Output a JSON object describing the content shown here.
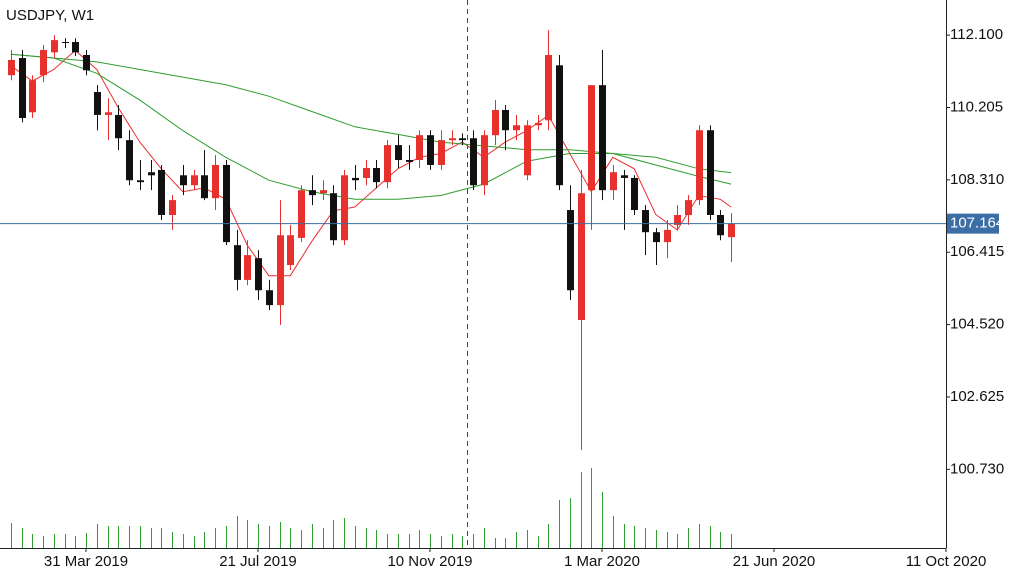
{
  "chart_data": {
    "type": "candlestick",
    "title": "USDJPY, W1",
    "x": [
      "2019-02-10",
      "2019-02-17",
      "2019-02-24",
      "2019-03-03",
      "2019-03-10",
      "2019-03-17",
      "2019-03-24",
      "2019-03-31",
      "2019-04-07",
      "2019-04-14",
      "2019-04-21",
      "2019-04-28",
      "2019-05-05",
      "2019-05-12",
      "2019-05-19",
      "2019-05-26",
      "2019-06-02",
      "2019-06-09",
      "2019-06-16",
      "2019-06-23",
      "2019-06-30",
      "2019-07-07",
      "2019-07-14",
      "2019-07-21",
      "2019-07-28",
      "2019-08-04",
      "2019-08-11",
      "2019-08-18",
      "2019-08-25",
      "2019-09-01",
      "2019-09-08",
      "2019-09-15",
      "2019-09-22",
      "2019-09-29",
      "2019-10-06",
      "2019-10-13",
      "2019-10-20",
      "2019-10-27",
      "2019-11-03",
      "2019-11-10",
      "2019-11-17",
      "2019-11-24",
      "2019-12-01",
      "2019-12-08",
      "2019-12-15",
      "2019-12-22",
      "2019-12-29",
      "2020-01-05",
      "2020-01-12",
      "2020-01-19",
      "2020-01-26",
      "2020-02-02",
      "2020-02-09",
      "2020-02-16",
      "2020-02-23",
      "2020-03-01",
      "2020-03-08",
      "2020-03-15",
      "2020-03-22",
      "2020-03-29",
      "2020-04-05",
      "2020-04-12",
      "2020-04-19",
      "2020-04-26",
      "2020-05-03",
      "2020-05-10",
      "2020-05-17",
      "2020-05-24"
    ],
    "open": [
      111.05,
      111.5,
      110.08,
      111.05,
      111.65,
      111.92,
      111.92,
      111.58,
      110.61,
      110.01,
      110.01,
      109.35,
      108.3,
      108.51,
      108.57,
      107.39,
      108.43,
      108.17,
      108.43,
      107.83,
      108.7,
      106.6,
      105.69,
      106.26,
      105.42,
      105.03,
      106.08,
      106.79,
      108.04,
      107.96,
      107.96,
      106.73,
      108.36,
      108.36,
      108.62,
      108.25,
      109.22,
      108.83,
      108.83,
      109.48,
      108.7,
      109.35,
      109.4,
      109.4,
      108.17,
      109.48,
      110.14,
      109.61,
      108.43,
      109.74,
      109.87,
      111.31,
      107.52,
      104.64,
      108.04,
      110.79,
      108.04,
      108.43,
      108.36,
      107.52,
      106.94,
      106.68,
      107.13,
      107.39,
      107.78,
      109.61,
      107.39,
      106.81
    ],
    "high": [
      111.71,
      111.71,
      111.05,
      111.84,
      112.1,
      112.02,
      112.02,
      111.71,
      110.79,
      110.45,
      110.27,
      109.61,
      108.83,
      108.83,
      108.7,
      107.91,
      108.7,
      108.57,
      109.09,
      108.96,
      108.83,
      107.0,
      106.73,
      106.47,
      105.69,
      107.78,
      107.13,
      108.17,
      108.43,
      108.3,
      108.17,
      108.57,
      108.7,
      108.83,
      108.83,
      109.35,
      109.48,
      109.22,
      109.61,
      109.61,
      109.61,
      109.61,
      109.53,
      109.61,
      109.61,
      110.4,
      110.27,
      110.01,
      109.87,
      110.01,
      112.23,
      111.58,
      108.17,
      108.57,
      110.79,
      111.71,
      108.7,
      108.57,
      108.43,
      107.65,
      107.05,
      107.26,
      107.65,
      107.91,
      109.74,
      109.74,
      107.52,
      107.44
    ],
    "low": [
      110.92,
      109.82,
      109.93,
      110.87,
      111.5,
      111.76,
      111.55,
      111.05,
      109.61,
      109.35,
      109.09,
      108.17,
      108.04,
      108.04,
      107.26,
      107.0,
      107.91,
      108.04,
      107.78,
      107.52,
      106.6,
      105.42,
      105.55,
      105.16,
      104.9,
      104.51,
      105.95,
      106.68,
      107.65,
      107.78,
      106.6,
      106.6,
      108.04,
      108.17,
      108.09,
      108.09,
      108.62,
      108.57,
      108.62,
      108.57,
      108.57,
      109.22,
      109.22,
      108.04,
      107.91,
      109.22,
      109.09,
      109.35,
      108.3,
      109.61,
      109.61,
      108.04,
      105.16,
      101.24,
      107.0,
      107.78,
      107.78,
      107.0,
      107.39,
      106.34,
      106.08,
      106.26,
      106.99,
      107.13,
      107.65,
      107.26,
      106.73,
      106.16
    ],
    "close": [
      111.45,
      109.93,
      110.92,
      111.71,
      111.97,
      111.9,
      111.65,
      111.18,
      110.01,
      110.08,
      109.4,
      108.3,
      108.25,
      108.43,
      107.39,
      107.78,
      108.17,
      108.43,
      107.83,
      108.7,
      106.68,
      105.69,
      106.34,
      105.42,
      105.03,
      106.86,
      106.86,
      108.04,
      107.91,
      108.04,
      106.73,
      108.43,
      108.3,
      108.62,
      108.25,
      109.22,
      108.83,
      108.78,
      109.48,
      108.7,
      109.35,
      109.4,
      109.35,
      108.17,
      109.48,
      110.14,
      109.61,
      109.74,
      109.74,
      109.8,
      111.58,
      108.17,
      105.42,
      107.96,
      110.79,
      108.04,
      108.51,
      108.36,
      107.52,
      106.94,
      106.68,
      107.0,
      107.39,
      107.78,
      109.61,
      107.39,
      106.86,
      107.164
    ],
    "volumes": [
      25,
      20,
      14,
      12,
      14,
      14,
      12,
      15,
      24,
      22,
      22,
      22,
      22,
      20,
      20,
      16,
      14,
      12,
      16,
      20,
      22,
      32,
      28,
      24,
      22,
      26,
      20,
      18,
      24,
      20,
      28,
      30,
      22,
      20,
      18,
      14,
      14,
      14,
      18,
      14,
      12,
      14,
      12,
      14,
      20,
      10,
      10,
      16,
      18,
      12,
      24,
      48,
      50,
      76,
      80,
      56,
      32,
      24,
      22,
      20,
      18,
      16,
      14,
      20,
      24,
      22,
      16,
      14
    ],
    "up_color": "#e8302c",
    "down_color": "#111111",
    "volume_color": "#2e9e2e",
    "current_price": 107.164,
    "current_price_color": "#3a6ea5",
    "series": [
      {
        "color": "#e8302c",
        "x": [
          "2019-02-10",
          "2019-02-24",
          "2019-03-10",
          "2019-03-24",
          "2019-04-07",
          "2019-04-21",
          "2019-05-05",
          "2019-05-19",
          "2019-06-02",
          "2019-06-16",
          "2019-06-30",
          "2019-07-14",
          "2019-07-28",
          "2019-08-11",
          "2019-08-25",
          "2019-09-08",
          "2019-09-22",
          "2019-10-06",
          "2019-10-20",
          "2019-11-03",
          "2019-11-17",
          "2019-12-01",
          "2019-12-15",
          "2019-12-29",
          "2020-01-12",
          "2020-01-26",
          "2020-02-09",
          "2020-02-23",
          "2020-03-08",
          "2020-03-22",
          "2020-04-05",
          "2020-04-19",
          "2020-05-03",
          "2020-05-17",
          "2020-05-24"
        ],
        "values": [
          111.3,
          110.9,
          111.2,
          111.7,
          111.2,
          110.2,
          109.3,
          108.6,
          108.0,
          108.1,
          107.8,
          106.6,
          105.8,
          105.8,
          106.7,
          107.5,
          107.6,
          108.1,
          108.6,
          108.9,
          109.0,
          109.3,
          108.9,
          109.3,
          109.6,
          110.0,
          109.0,
          108.0,
          108.9,
          108.6,
          107.4,
          107.0,
          107.9,
          107.8,
          107.6
        ]
      },
      {
        "color": "#2e9e2e",
        "x": [
          "2019-02-10",
          "2019-03-10",
          "2019-04-07",
          "2019-05-05",
          "2019-06-02",
          "2019-06-30",
          "2019-07-28",
          "2019-08-25",
          "2019-09-22",
          "2019-10-20",
          "2019-11-17",
          "2019-12-15",
          "2020-01-12",
          "2020-02-09",
          "2020-03-08",
          "2020-04-05",
          "2020-05-03",
          "2020-05-24"
        ],
        "values": [
          111.6,
          111.5,
          111.1,
          110.4,
          109.6,
          108.9,
          108.3,
          108.0,
          107.8,
          107.8,
          107.9,
          108.2,
          108.8,
          109.0,
          109.0,
          108.7,
          108.4,
          108.2
        ]
      },
      {
        "color": "#2e9e2e",
        "x": [
          "2019-02-10",
          "2019-03-10",
          "2019-04-07",
          "2019-05-05",
          "2019-06-02",
          "2019-06-30",
          "2019-07-28",
          "2019-08-25",
          "2019-09-22",
          "2019-10-20",
          "2019-11-17",
          "2019-12-15",
          "2020-01-12",
          "2020-02-09",
          "2020-03-08",
          "2020-04-05",
          "2020-05-03",
          "2020-05-24"
        ],
        "values": [
          111.6,
          111.5,
          111.4,
          111.2,
          111.0,
          110.8,
          110.5,
          110.1,
          109.7,
          109.5,
          109.3,
          109.2,
          109.1,
          109.1,
          109.0,
          108.9,
          108.6,
          108.5
        ]
      }
    ],
    "xlim": [
      "2019-02-03",
      "2020-10-11"
    ],
    "xticks": [
      {
        "value": "2019-03-31",
        "label": "31 Mar 2019"
      },
      {
        "value": "2019-07-21",
        "label": "21 Jul 2019"
      },
      {
        "value": "2019-11-10",
        "label": "10 Nov 2019"
      },
      {
        "value": "2020-03-01",
        "label": "1 Mar 2020"
      },
      {
        "value": "2020-06-21",
        "label": "21 Jun 2020"
      },
      {
        "value": "2020-10-11",
        "label": "11 Oct 2020"
      }
    ],
    "ylim": [
      98.67,
      113.02
    ],
    "yticks": [
      {
        "value": 112.1,
        "label": "112.100"
      },
      {
        "value": 110.205,
        "label": "110.205"
      },
      {
        "value": 108.31,
        "label": "108.310"
      },
      {
        "value": 106.415,
        "label": "106.415"
      },
      {
        "value": 104.52,
        "label": "104.520"
      },
      {
        "value": 102.625,
        "label": "102.625"
      },
      {
        "value": 100.73,
        "label": "100.730"
      }
    ]
  }
}
